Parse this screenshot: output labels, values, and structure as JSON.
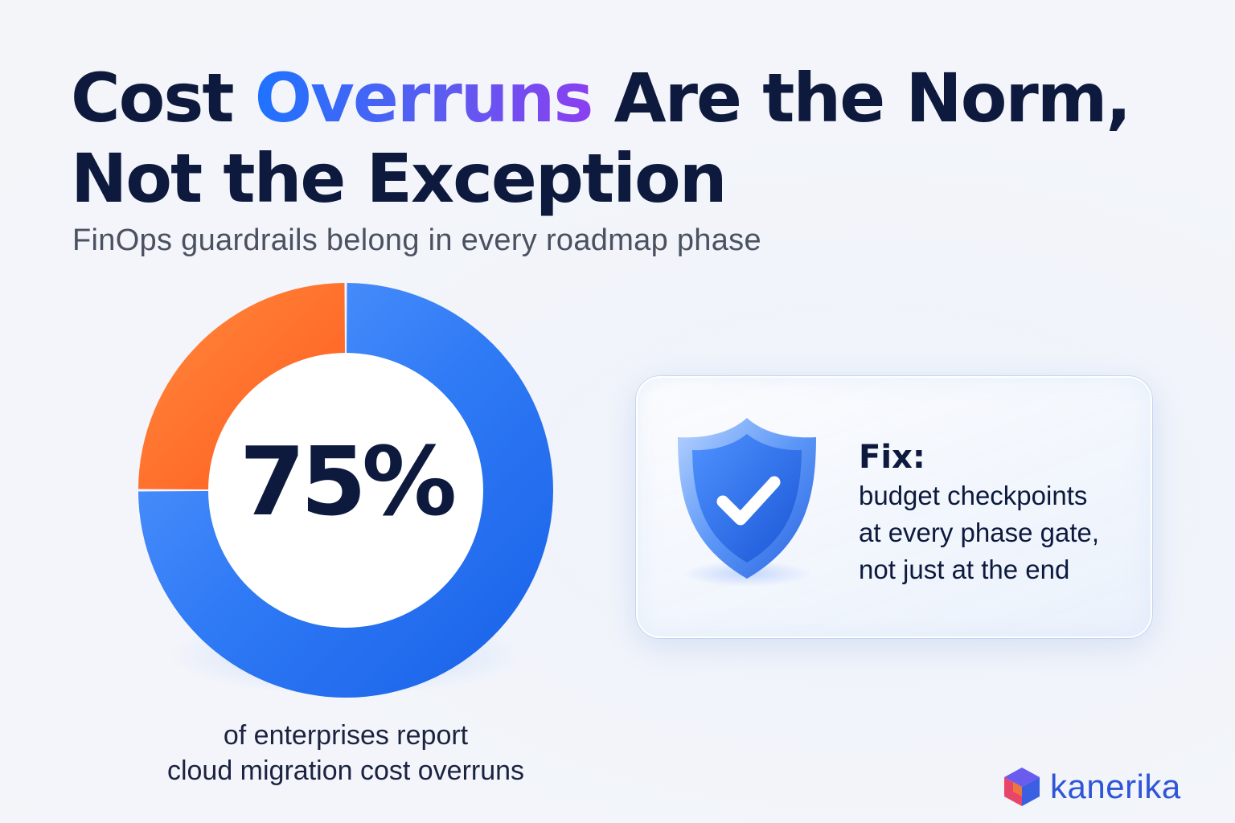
{
  "header": {
    "title_prefix": "Cost ",
    "title_accent": "Overruns",
    "title_suffix": " Are the Norm,",
    "title_line2": "Not the Exception",
    "subtitle": "FinOps guardrails belong in every roadmap phase"
  },
  "chart_data": {
    "type": "pie",
    "center_label": "75%",
    "slices": [
      {
        "value": 75,
        "color": "#2f7af5"
      },
      {
        "value": 25,
        "color": "#ff6a2b"
      }
    ],
    "caption_line1": "of enterprises report",
    "caption_line2": "cloud migration cost overruns"
  },
  "fix_card": {
    "label": "Fix:",
    "line1": "budget checkpoints",
    "line2": "at every phase gate,",
    "line3": "not just at the end",
    "icon": "shield-check-icon"
  },
  "brand": {
    "name": "kanerika",
    "icon": "cube-logo-icon",
    "color": "#2f55d8"
  }
}
